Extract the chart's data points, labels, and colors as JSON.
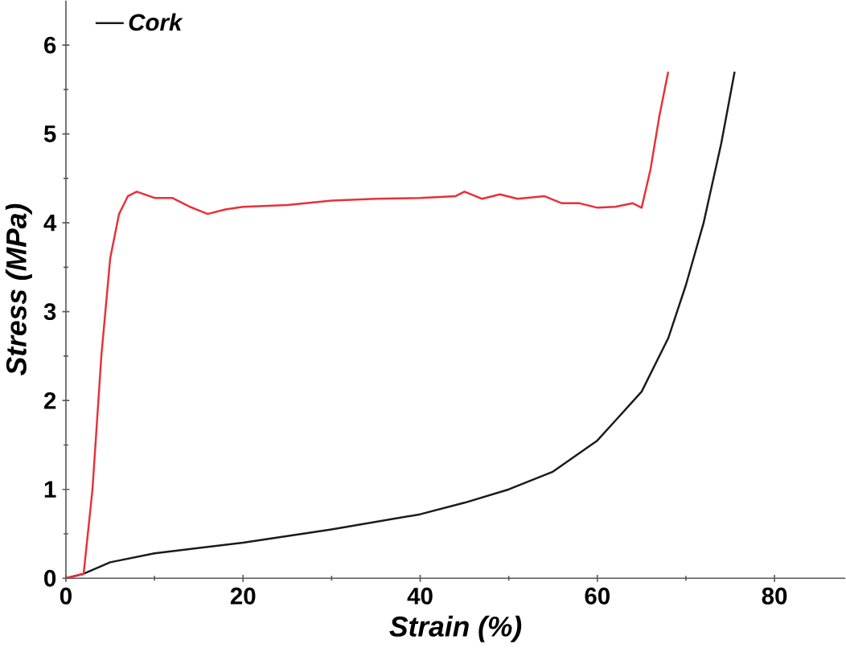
{
  "chart_data": {
    "type": "line",
    "xlabel": "Strain (%)",
    "ylabel": "Stress (MPa)",
    "xlim": [
      0,
      88
    ],
    "ylim": [
      0,
      6.5
    ],
    "xticks": [
      0,
      20,
      40,
      60,
      80
    ],
    "yticks": [
      0,
      1,
      2,
      3,
      4,
      5,
      6
    ],
    "legend": "top left",
    "grid": false,
    "marker": "none",
    "line_style": "solid",
    "series": [
      {
        "name": "Cork",
        "color": "#1a1a1a",
        "x": [
          0,
          2,
          5,
          10,
          20,
          30,
          40,
          45,
          50,
          55,
          60,
          65,
          68,
          70,
          72,
          74,
          75.5
        ],
        "values": [
          0,
          0.05,
          0.18,
          0.28,
          0.4,
          0.55,
          0.72,
          0.85,
          1.0,
          1.2,
          1.55,
          2.1,
          2.7,
          3.3,
          4.0,
          4.9,
          5.7
        ]
      },
      {
        "color": "#e8303a",
        "x": [
          0,
          2,
          3,
          4,
          5,
          6,
          7,
          8,
          10,
          12,
          14,
          16,
          18,
          20,
          25,
          30,
          35,
          40,
          44,
          45,
          47,
          49,
          51,
          54,
          56,
          58,
          60,
          62,
          64,
          65,
          66,
          67,
          68
        ],
        "values": [
          0,
          0.05,
          1,
          2.5,
          3.6,
          4.1,
          4.3,
          4.35,
          4.28,
          4.28,
          4.18,
          4.1,
          4.15,
          4.18,
          4.2,
          4.25,
          4.27,
          4.28,
          4.3,
          4.35,
          4.27,
          4.32,
          4.27,
          4.3,
          4.22,
          4.22,
          4.17,
          4.18,
          4.22,
          4.17,
          4.6,
          5.2,
          5.7
        ]
      }
    ]
  }
}
